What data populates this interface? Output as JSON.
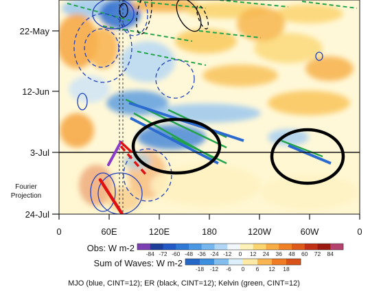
{
  "chart_data": {
    "type": "heatmap",
    "title": "",
    "xlabel": "",
    "ylabel": "",
    "x_ticks": [
      "0",
      "60E",
      "120E",
      "180",
      "120W",
      "60W",
      "0"
    ],
    "y_ticks": [
      "22-May",
      "12-Jun",
      "3-Jul",
      "24-Jul"
    ],
    "xlim_deg_east": [
      0,
      360
    ],
    "grid": false,
    "projection_label": "Fourier Projection",
    "observation_line_date": "3-Jul",
    "obs_colorbar": {
      "label": "Obs: W m-2",
      "levels": [
        -84,
        -72,
        -60,
        -48,
        -36,
        -24,
        -12,
        0,
        12,
        24,
        36,
        48,
        60,
        72,
        84
      ],
      "colors": [
        "#7b3fb3",
        "#1d3f9a",
        "#2359c4",
        "#2f78d6",
        "#4a98e4",
        "#76b6ee",
        "#b2d6f5",
        "#f2f7fb",
        "#fff2b8",
        "#fdd56f",
        "#f8ae45",
        "#ef8124",
        "#df5a1a",
        "#c23016",
        "#9c1912",
        "#b5416f"
      ]
    },
    "waves_colorbar": {
      "label": "Sum of Waves: W m-2",
      "levels": [
        -18,
        -12,
        -6,
        0,
        6,
        12,
        18
      ],
      "colors": [
        "#2467c7",
        "#3c8fdc",
        "#82bdee",
        "#dbeefa",
        "#fde9a6",
        "#f9b552",
        "#ef7c22",
        "#d9521a"
      ]
    },
    "caption": "MJO (blue, CINT=12); ER (black, CINT=12); Kelvin (green, CINT=12)",
    "wave_contours": [
      {
        "name": "MJO",
        "color": "#1f3fbf"
      },
      {
        "name": "ER",
        "color": "#000000"
      },
      {
        "name": "Kelvin",
        "color": "#22a34a"
      }
    ],
    "annotations": [
      {
        "type": "ellipse",
        "center_lon": 145,
        "center_date": "3-Jul"
      },
      {
        "type": "ellipse",
        "center_lon": 300,
        "center_date": "3-Jul"
      }
    ]
  },
  "colors": {
    "mjo": "#1f3fbf",
    "er": "#000000",
    "kelvin": "#22a34a",
    "red_line": "#e01010",
    "purple_line": "#8a3bc9"
  }
}
